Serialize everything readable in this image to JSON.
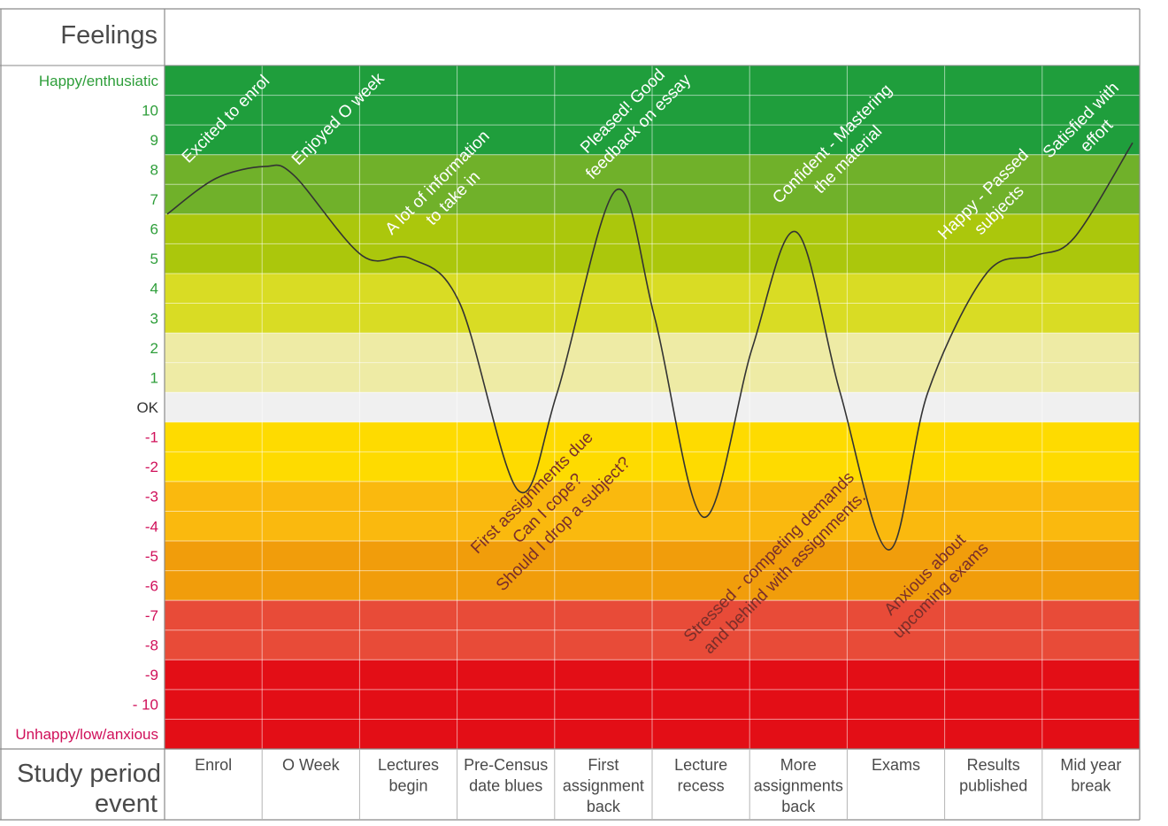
{
  "header": {
    "feelings_label": "Feelings",
    "event_label_line1": "Study period",
    "event_label_line2": "event"
  },
  "chart_data": {
    "type": "line",
    "title": "",
    "ylabel": "Feelings",
    "xlabel": "Study period event",
    "ylim": [
      -11,
      11
    ],
    "grid": true,
    "y_ticks": [
      {
        "label": "Happy/enthusiatic",
        "value": 11,
        "tone": "positive"
      },
      {
        "label": "10",
        "value": 10,
        "tone": "positive"
      },
      {
        "label": "9",
        "value": 9,
        "tone": "positive"
      },
      {
        "label": "8",
        "value": 8,
        "tone": "positive"
      },
      {
        "label": "7",
        "value": 7,
        "tone": "positive"
      },
      {
        "label": "6",
        "value": 6,
        "tone": "positive"
      },
      {
        "label": "5",
        "value": 5,
        "tone": "positive"
      },
      {
        "label": "4",
        "value": 4,
        "tone": "positive"
      },
      {
        "label": "3",
        "value": 3,
        "tone": "positive"
      },
      {
        "label": "2",
        "value": 2,
        "tone": "positive"
      },
      {
        "label": "1",
        "value": 1,
        "tone": "positive"
      },
      {
        "label": "OK",
        "value": 0,
        "tone": "neutral"
      },
      {
        "label": "-1",
        "value": -1,
        "tone": "negative"
      },
      {
        "label": "-2",
        "value": -2,
        "tone": "negative"
      },
      {
        "label": "-3",
        "value": -3,
        "tone": "negative"
      },
      {
        "label": "-4",
        "value": -4,
        "tone": "negative"
      },
      {
        "label": "-5",
        "value": -5,
        "tone": "negative"
      },
      {
        "label": "-6",
        "value": -6,
        "tone": "negative"
      },
      {
        "label": "-7",
        "value": -7,
        "tone": "negative"
      },
      {
        "label": "-8",
        "value": -8,
        "tone": "negative"
      },
      {
        "label": "-9",
        "value": -9,
        "tone": "negative"
      },
      {
        "label": "- 10",
        "value": -10,
        "tone": "negative"
      },
      {
        "label": "Unhappy/low/anxious",
        "value": -11,
        "tone": "negative"
      }
    ],
    "tone_colors": {
      "positive": "#2e9e3a",
      "neutral": "#333333",
      "negative": "#d0105a"
    },
    "bands": [
      {
        "from": 8.5,
        "to": 11.5,
        "color": "#1f9e3c"
      },
      {
        "from": 6.5,
        "to": 8.5,
        "color": "#70b12a"
      },
      {
        "from": 4.5,
        "to": 6.5,
        "color": "#abc70c"
      },
      {
        "from": 2.5,
        "to": 4.5,
        "color": "#d9dc24"
      },
      {
        "from": 0.5,
        "to": 2.5,
        "color": "#eeeba5"
      },
      {
        "from": -0.5,
        "to": 0.5,
        "color": "#f0f0f0"
      },
      {
        "from": -2.5,
        "to": -0.5,
        "color": "#fedb00"
      },
      {
        "from": -4.5,
        "to": -2.5,
        "color": "#fab90e"
      },
      {
        "from": -6.5,
        "to": -4.5,
        "color": "#f19d0b"
      },
      {
        "from": -8.5,
        "to": -6.5,
        "color": "#e84b38"
      },
      {
        "from": -11.5,
        "to": -8.5,
        "color": "#e30e16"
      }
    ],
    "categories": [
      [
        "Enrol"
      ],
      [
        "O Week"
      ],
      [
        "Lectures",
        "begin"
      ],
      [
        "Pre-Census",
        "date blues"
      ],
      [
        "First",
        "assignment",
        "back"
      ],
      [
        "Lecture",
        "recess"
      ],
      [
        "More",
        "assignments",
        "back"
      ],
      [
        "Exams"
      ],
      [
        "Results",
        "published"
      ],
      [
        "Mid year",
        "break"
      ]
    ],
    "series": [
      {
        "color": "#333333",
        "points": [
          {
            "x": 0,
            "y": 6.5
          },
          {
            "x": 0.5,
            "y": 7.7
          },
          {
            "x": 1.0,
            "y": 8.1
          },
          {
            "x": 1.3,
            "y": 7.8
          },
          {
            "x": 2.0,
            "y": 5.1
          },
          {
            "x": 2.5,
            "y": 5.0
          },
          {
            "x": 3.0,
            "y": 3.5
          },
          {
            "x": 3.6,
            "y": -2.8
          },
          {
            "x": 4.0,
            "y": 0.5
          },
          {
            "x": 4.6,
            "y": 7.3
          },
          {
            "x": 5.0,
            "y": 3.0
          },
          {
            "x": 5.5,
            "y": -3.7
          },
          {
            "x": 6.0,
            "y": 2.0
          },
          {
            "x": 6.45,
            "y": 5.9
          },
          {
            "x": 6.9,
            "y": 0.5
          },
          {
            "x": 7.4,
            "y": -4.8
          },
          {
            "x": 7.8,
            "y": 0.5
          },
          {
            "x": 8.4,
            "y": 4.5
          },
          {
            "x": 8.9,
            "y": 5.1
          },
          {
            "x": 9.3,
            "y": 5.7
          },
          {
            "x": 9.9,
            "y": 8.9
          }
        ]
      }
    ],
    "annotations": [
      {
        "lines": [
          "Excited to enrol"
        ],
        "x": 0.6,
        "y": 9.7
      },
      {
        "lines": [
          "Enjoyed O week"
        ],
        "x": 1.75,
        "y": 9.7
      },
      {
        "lines": [
          "A lot of information",
          "to take in"
        ],
        "x": 2.85,
        "y": 7.3
      },
      {
        "lines": [
          "Pleased! Good",
          "feedback on essay"
        ],
        "x": 4.75,
        "y": 9.7
      },
      {
        "lines": [
          "Confident - Mastering",
          "the material"
        ],
        "x": 6.9,
        "y": 8.6
      },
      {
        "lines": [
          "Satisfied with",
          "effort"
        ],
        "x": 9.45,
        "y": 9.4
      },
      {
        "lines": [
          "Happy - Passed",
          "subjects"
        ],
        "x": 8.45,
        "y": 6.9
      },
      {
        "lines": [
          "First assignments due",
          "Can I cope?",
          "Should I drop a subject?"
        ],
        "x": 3.9,
        "y": -3.4
      },
      {
        "lines": [
          "Stressed - competing demands",
          "and behind with assignments."
        ],
        "x": 6.25,
        "y": -5.3
      },
      {
        "lines": [
          "Anxious about",
          "upcoming exams"
        ],
        "x": 7.85,
        "y": -5.9
      }
    ]
  }
}
